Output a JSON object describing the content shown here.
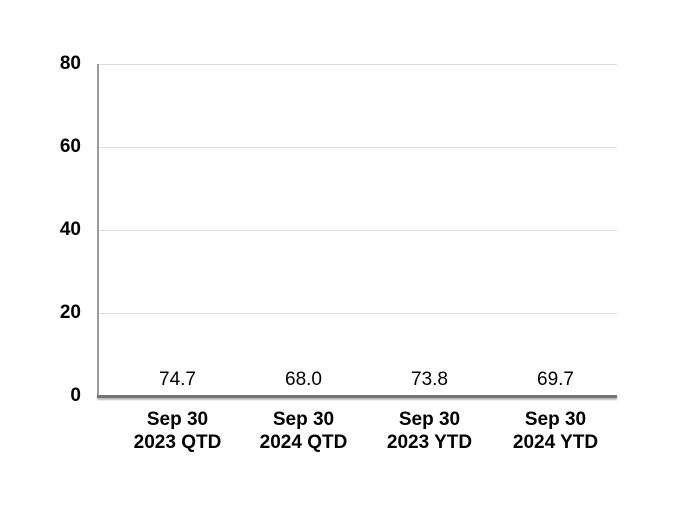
{
  "colors": {
    "light_blue": "#b9d6e8",
    "dark_blue": "#3a5a78",
    "gridline": "#dcdcdc",
    "y_axis_line": "#9c9c9c",
    "baseline": "#757575",
    "label_text": "#000000",
    "background": "#ffffff"
  },
  "chart_data": {
    "type": "bar",
    "title": "",
    "xlabel": "",
    "ylabel": "",
    "categories": [
      "Sep 30 2023 QTD",
      "Sep 30 2024 QTD",
      "Sep 30 2023 YTD",
      "Sep 30 2024 YTD"
    ],
    "category_labels": [
      [
        "Sep 30",
        "2023 QTD"
      ],
      [
        "Sep 30",
        "2024 QTD"
      ],
      [
        "Sep 30",
        "2023 YTD"
      ],
      [
        "Sep 30",
        "2024 YTD"
      ]
    ],
    "values": [
      74.7,
      68.0,
      73.8,
      69.7
    ],
    "data_labels": [
      "74.7",
      "68.0",
      "73.8",
      "69.7"
    ],
    "bar_colors": [
      "#b9d6e8",
      "#3a5a78",
      "#b9d6e8",
      "#3a5a78"
    ],
    "ylim": [
      0,
      80
    ],
    "yticks": [
      0,
      20,
      40,
      60,
      80
    ],
    "ytick_labels": [
      "0",
      "20",
      "40",
      "60",
      "80"
    ],
    "grid": true,
    "legend": false
  }
}
